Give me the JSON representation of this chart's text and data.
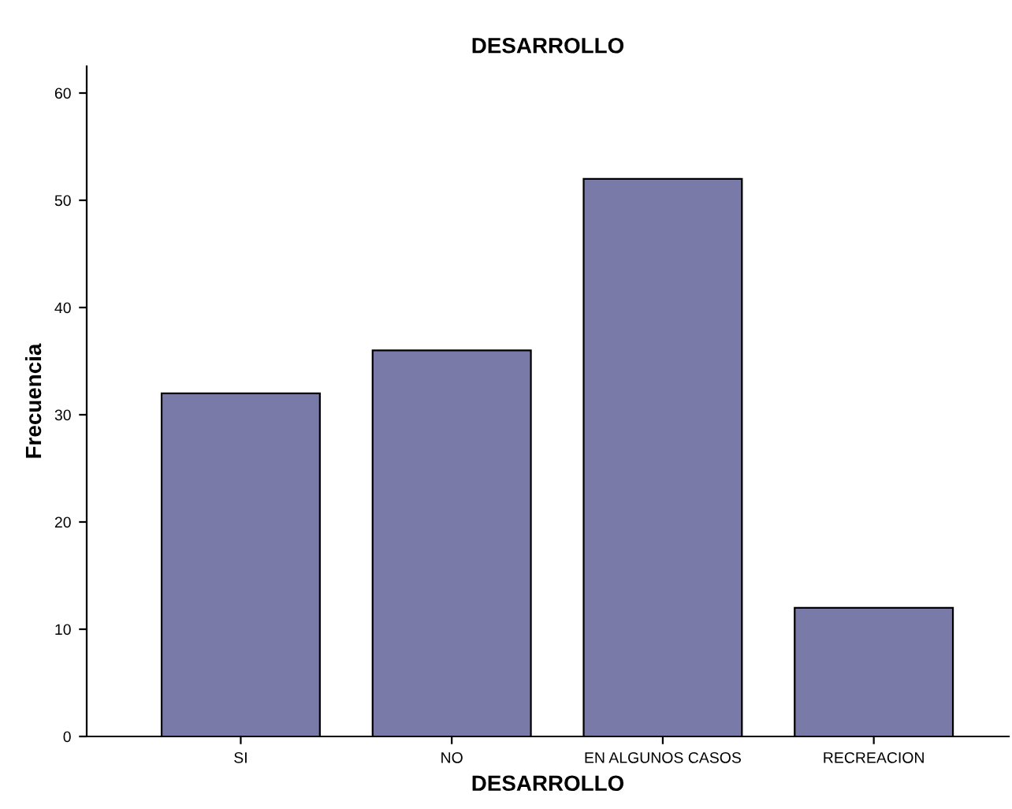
{
  "chart_data": {
    "type": "bar",
    "title": "DESARROLLO",
    "xlabel": "DESARROLLO",
    "ylabel": "Frecuencia",
    "categories": [
      "SI",
      "NO",
      "EN ALGUNOS CASOS",
      "RECREACION"
    ],
    "values": [
      32,
      36,
      52,
      12
    ],
    "color": "#7a7aa8",
    "ylim": [
      0,
      62.5
    ],
    "yticks": [
      0,
      10,
      20,
      30,
      40,
      50,
      60
    ],
    "grid": false,
    "legend": false
  }
}
